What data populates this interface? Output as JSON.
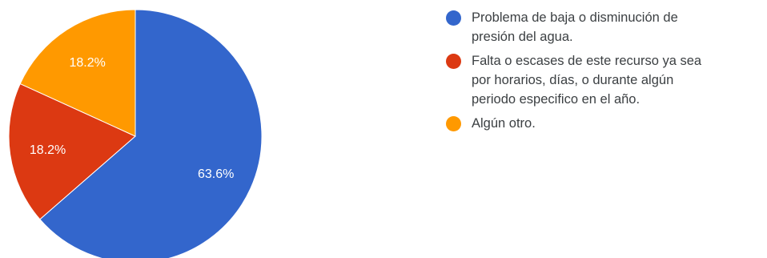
{
  "chart_data": {
    "type": "pie",
    "title": "",
    "slices": [
      {
        "label": "Problema de baja o disminución de\npresión del agua.",
        "value": 63.6,
        "display": "63.6%",
        "color": "#3366cc"
      },
      {
        "label": "Falta o escases de este recurso ya sea\npor horarios, días, o durante algún\nperiodo especifico en el año.",
        "value": 18.2,
        "display": "18.2%",
        "color": "#dc3912"
      },
      {
        "label": "Algún otro.",
        "value": 18.2,
        "display": "18.2%",
        "color": "#ff9900"
      }
    ],
    "legend_position": "right"
  }
}
